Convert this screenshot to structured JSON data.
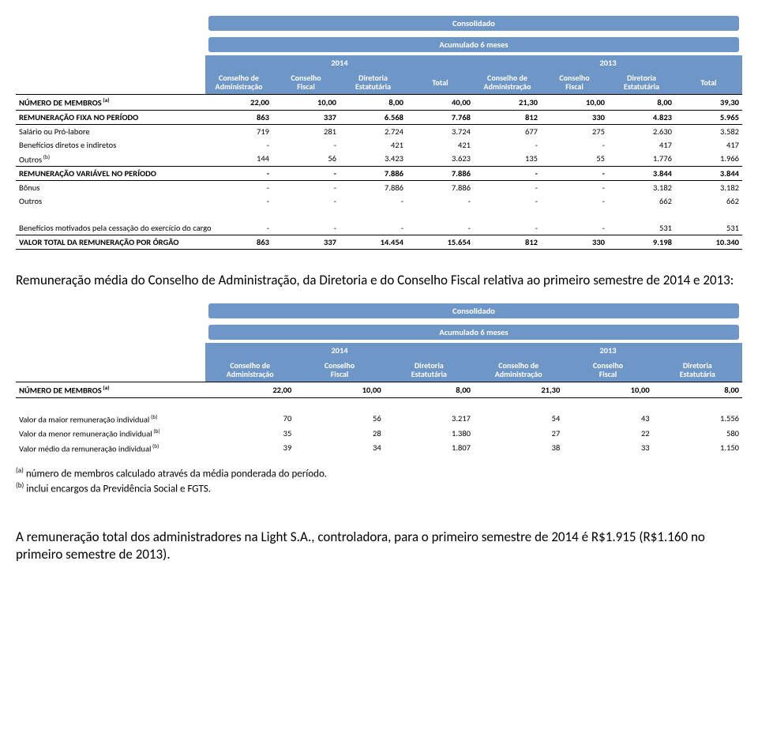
{
  "table1": {
    "header_consolidado": "Consolidado",
    "header_acumulado": "Acumulado 6 meses",
    "years": [
      "2014",
      "2013"
    ],
    "col_headers": [
      "Conselho de Administração",
      "Conselho Fiscal",
      "Diretoria Estatutária",
      "Total",
      "Conselho de Administração",
      "Conselho Fiscal",
      "Diretoria Estatutária",
      "Total"
    ],
    "rows": [
      {
        "label": "NÚMERO DE MEMBROS",
        "sup": "(a)",
        "bold": true,
        "top": true,
        "bot": true,
        "cells": [
          "22,00",
          "10,00",
          "8,00",
          "40,00",
          "21,30",
          "10,00",
          "8,00",
          "39,30"
        ]
      },
      {
        "label": "REMUNERAÇÃO FIXA NO PERÍODO",
        "bold": true,
        "top": true,
        "bot": true,
        "cells": [
          "863",
          "337",
          "6.568",
          "7.768",
          "812",
          "330",
          "4.823",
          "5.965"
        ]
      },
      {
        "label": "Salário ou Pró-labore",
        "cells": [
          "719",
          "281",
          "2.724",
          "3.724",
          "677",
          "275",
          "2.630",
          "3.582"
        ]
      },
      {
        "label": "Benefícios diretos e indiretos",
        "cells": [
          "-",
          "-",
          "421",
          "421",
          "-",
          "-",
          "417",
          "417"
        ]
      },
      {
        "label": "Outros",
        "sup": "(b)",
        "cells": [
          "144",
          "56",
          "3.423",
          "3.623",
          "135",
          "55",
          "1.776",
          "1.966"
        ]
      },
      {
        "label": "REMUNERAÇÃO VARIÁVEL NO PERÍODO",
        "bold": true,
        "top": true,
        "bot": true,
        "cells": [
          "-",
          "-",
          "7.886",
          "7.886",
          "-",
          "-",
          "3.844",
          "3.844"
        ]
      },
      {
        "label": "Bônus",
        "cells": [
          "-",
          "-",
          "7.886",
          "7.886",
          "-",
          "-",
          "3.182",
          "3.182"
        ]
      },
      {
        "label": "Outros",
        "cells": [
          "-",
          "-",
          "-",
          "-",
          "-",
          "-",
          "662",
          "662"
        ]
      },
      {
        "spacer": true
      },
      {
        "label": "Benefícios motivados pela cessação do exercício do cargo",
        "bot": true,
        "cells": [
          "-",
          "-",
          "-",
          "-",
          "-",
          "-",
          "531",
          "531"
        ]
      },
      {
        "label": "VALOR TOTAL DA REMUNERAÇÃO POR ÓRGÃO",
        "bold": true,
        "top": true,
        "bot": true,
        "cells": [
          "863",
          "337",
          "14.454",
          "15.654",
          "812",
          "330",
          "9.198",
          "10.340"
        ]
      }
    ]
  },
  "prose1": "Remuneração média do Conselho de Administração, da Diretoria e do Conselho Fiscal relativa ao primeiro semestre de 2014 e 2013:",
  "table2": {
    "header_consolidado": "Consolidado",
    "header_acumulado": "Acumulado 6 meses",
    "years": [
      "2014",
      "2013"
    ],
    "col_headers": [
      "Conselho de Administração",
      "Conselho Fiscal",
      "Diretoria Estatutária",
      "Conselho de Administração",
      "Conselho Fiscal",
      "Diretoria Estatutária"
    ],
    "rows": [
      {
        "label": "NÚMERO DE MEMBROS",
        "sup": "(a)",
        "bold": true,
        "top": true,
        "bot": true,
        "cells": [
          "22,00",
          "10,00",
          "8,00",
          "21,30",
          "10,00",
          "8,00"
        ]
      },
      {
        "spacer": true
      },
      {
        "label": "Valor da maior remuneração individual",
        "sup": "(b)",
        "cells": [
          "70",
          "56",
          "3.217",
          "54",
          "43",
          "1.556"
        ]
      },
      {
        "label": "Valor da menor remuneração individual",
        "sup": "(b)",
        "cells": [
          "35",
          "28",
          "1.380",
          "27",
          "22",
          "580"
        ]
      },
      {
        "label": "Valor médio da remuneração individual",
        "sup": "(b)",
        "cells": [
          "39",
          "34",
          "1.807",
          "38",
          "33",
          "1.150"
        ]
      }
    ]
  },
  "footnotes": {
    "a": "número de membros calculado através da média ponderada do período.",
    "b": "inclui encargos da Previdência Social e FGTS."
  },
  "prose2": "A remuneração total dos administradores na Light S.A., controladora, para o primeiro semestre de 2014 é R$1.915 (R$1.160 no primeiro semestre de 2013)."
}
